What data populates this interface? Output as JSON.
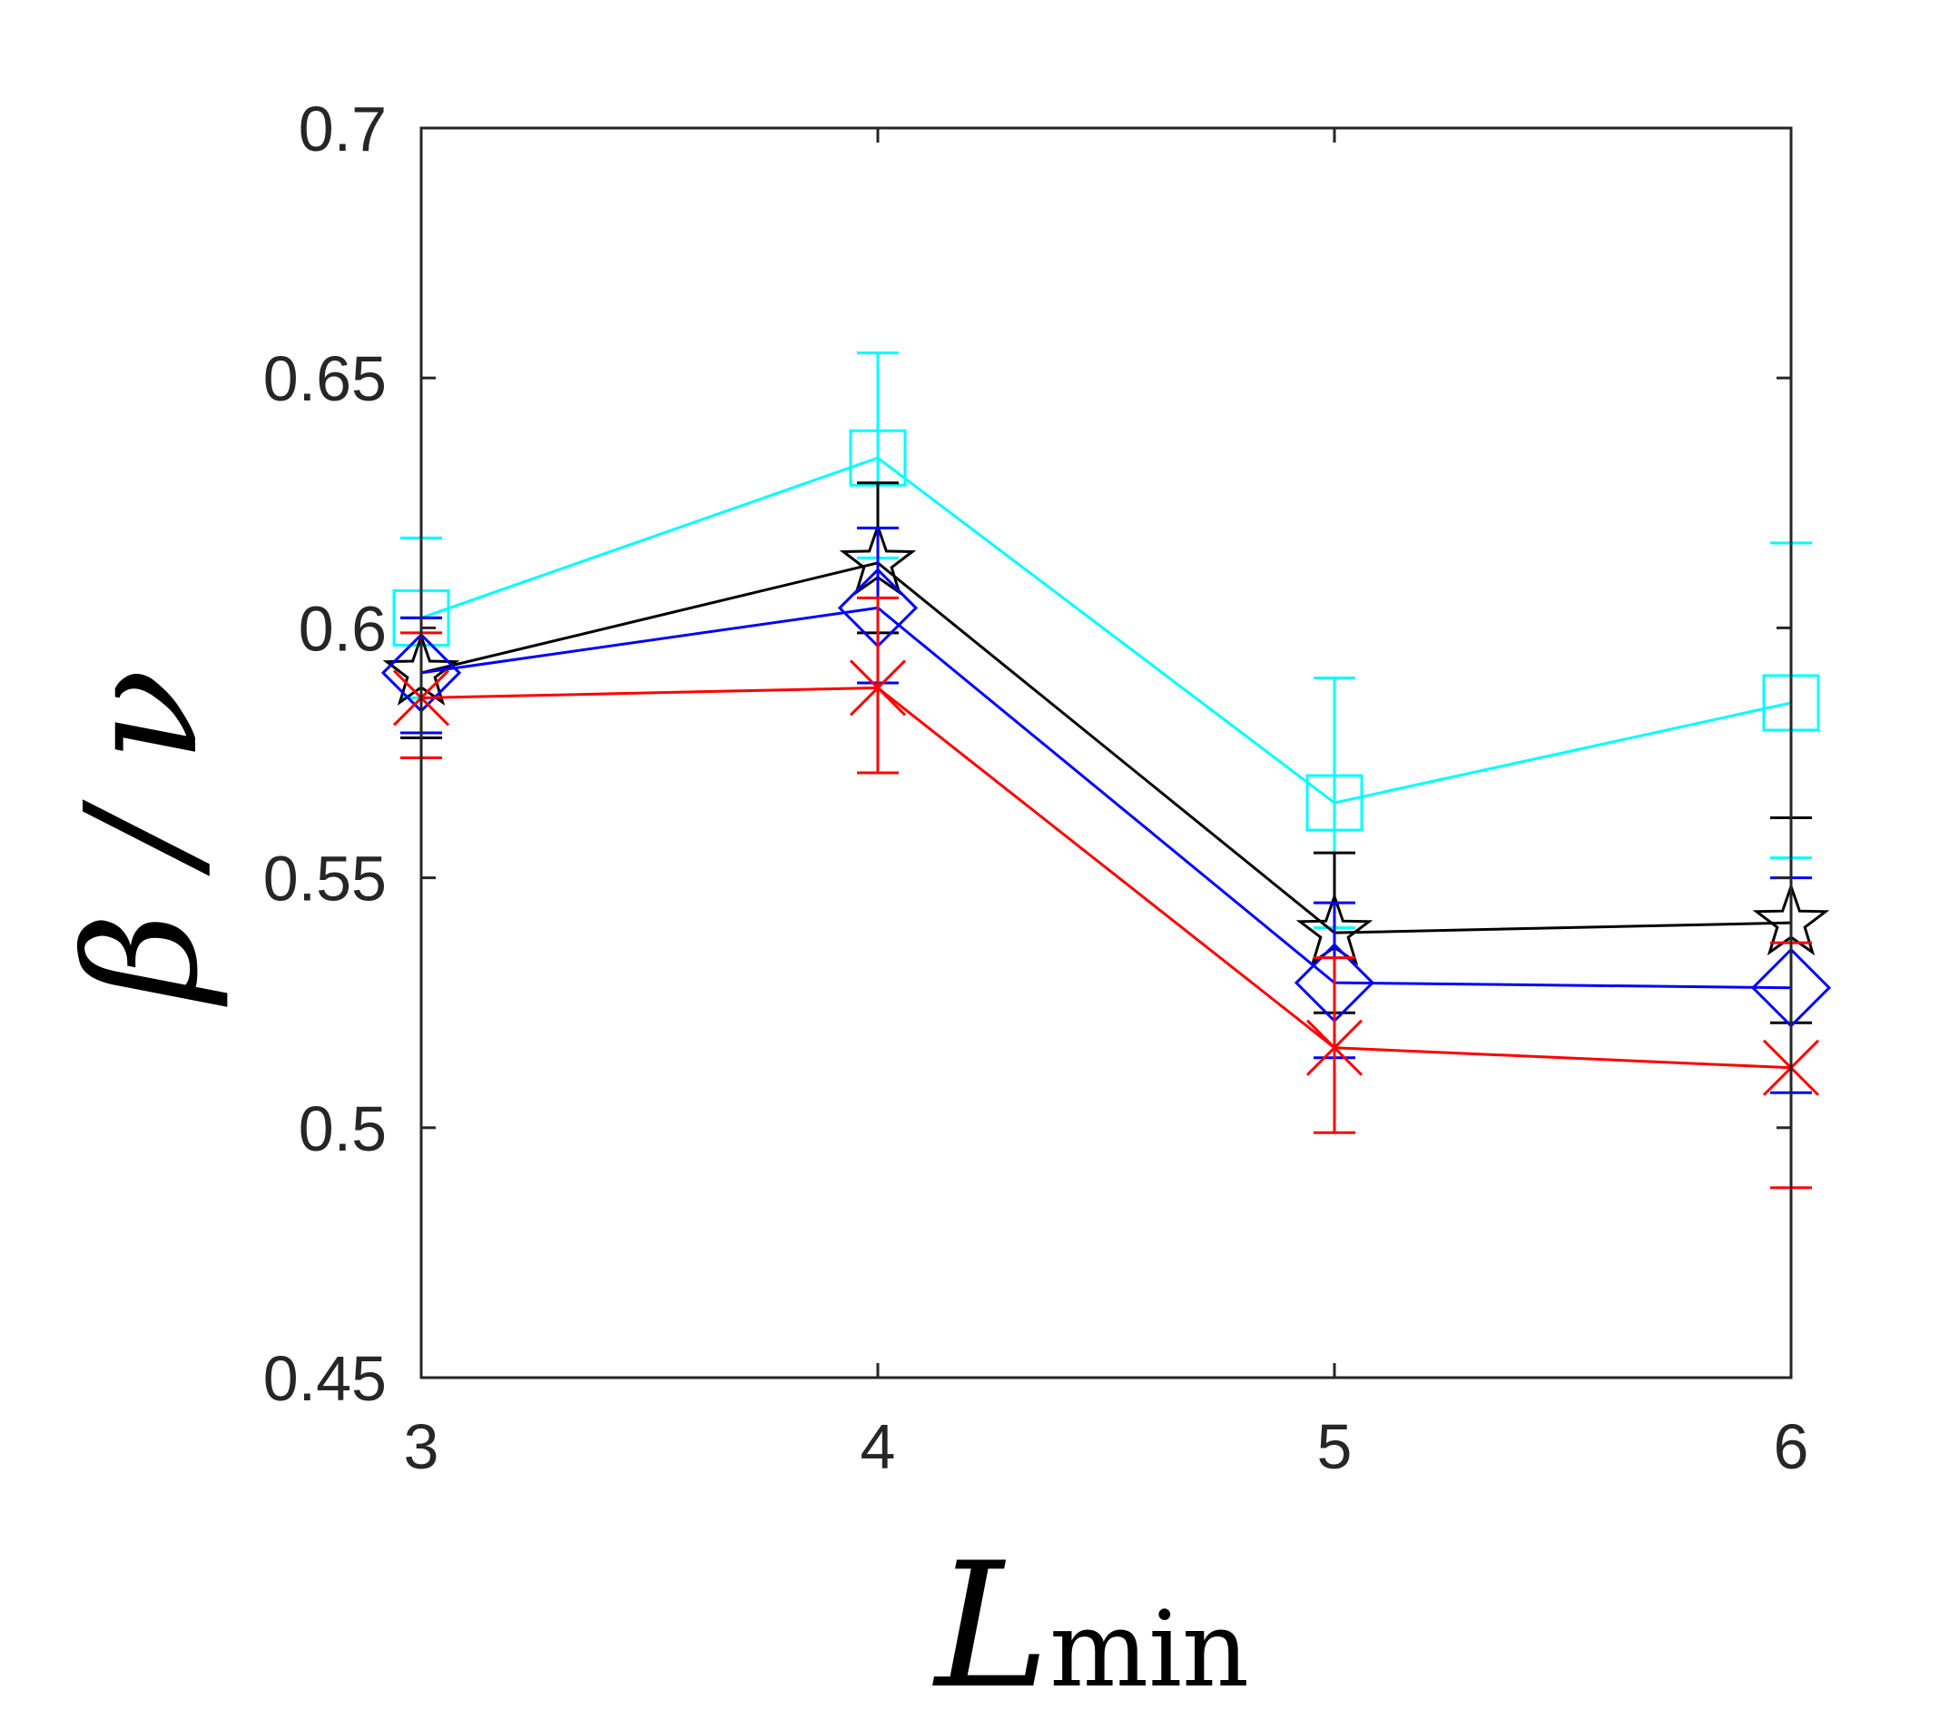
{
  "chart_data": {
    "type": "line",
    "title": "",
    "xlabel": "L",
    "xlabel_sub": "min",
    "ylabel": "β / ν",
    "xlim": [
      3,
      6
    ],
    "ylim": [
      0.45,
      0.7
    ],
    "x_ticks": [
      3,
      4,
      5,
      6
    ],
    "x_tick_labels": [
      "3",
      "4",
      "5",
      "6"
    ],
    "y_ticks": [
      0.45,
      0.5,
      0.55,
      0.6,
      0.65,
      0.7
    ],
    "y_tick_labels": [
      "0.45",
      "0.5",
      "0.55",
      "0.6",
      "0.65",
      "0.7"
    ],
    "grid": false,
    "x": [
      3,
      4,
      5,
      6
    ],
    "series": [
      {
        "name": "square",
        "color": "#00ffff",
        "marker": "square",
        "values": [
          0.602,
          0.634,
          0.565,
          0.585
        ],
        "err_low": [
          0.586,
          0.614,
          0.54,
          0.554
        ],
        "err_high": [
          0.618,
          0.655,
          0.59,
          0.617
        ]
      },
      {
        "name": "star",
        "color": "#000000",
        "marker": "star",
        "values": [
          0.591,
          0.613,
          0.539,
          0.541
        ],
        "err_low": [
          0.578,
          0.599,
          0.523,
          0.521
        ],
        "err_high": [
          0.602,
          0.629,
          0.555,
          0.562
        ]
      },
      {
        "name": "diamond",
        "color": "#0000ff",
        "marker": "diamond",
        "values": [
          0.591,
          0.604,
          0.529,
          0.528
        ],
        "err_low": [
          0.579,
          0.589,
          0.514,
          0.507
        ],
        "err_high": [
          0.602,
          0.62,
          0.545,
          0.55
        ]
      },
      {
        "name": "asterisk",
        "color": "#ff0000",
        "marker": "asterisk",
        "values": [
          0.586,
          0.588,
          0.516,
          0.512
        ],
        "err_low": [
          0.574,
          0.571,
          0.499,
          0.488
        ],
        "err_high": [
          0.599,
          0.606,
          0.534,
          0.537
        ]
      }
    ]
  }
}
